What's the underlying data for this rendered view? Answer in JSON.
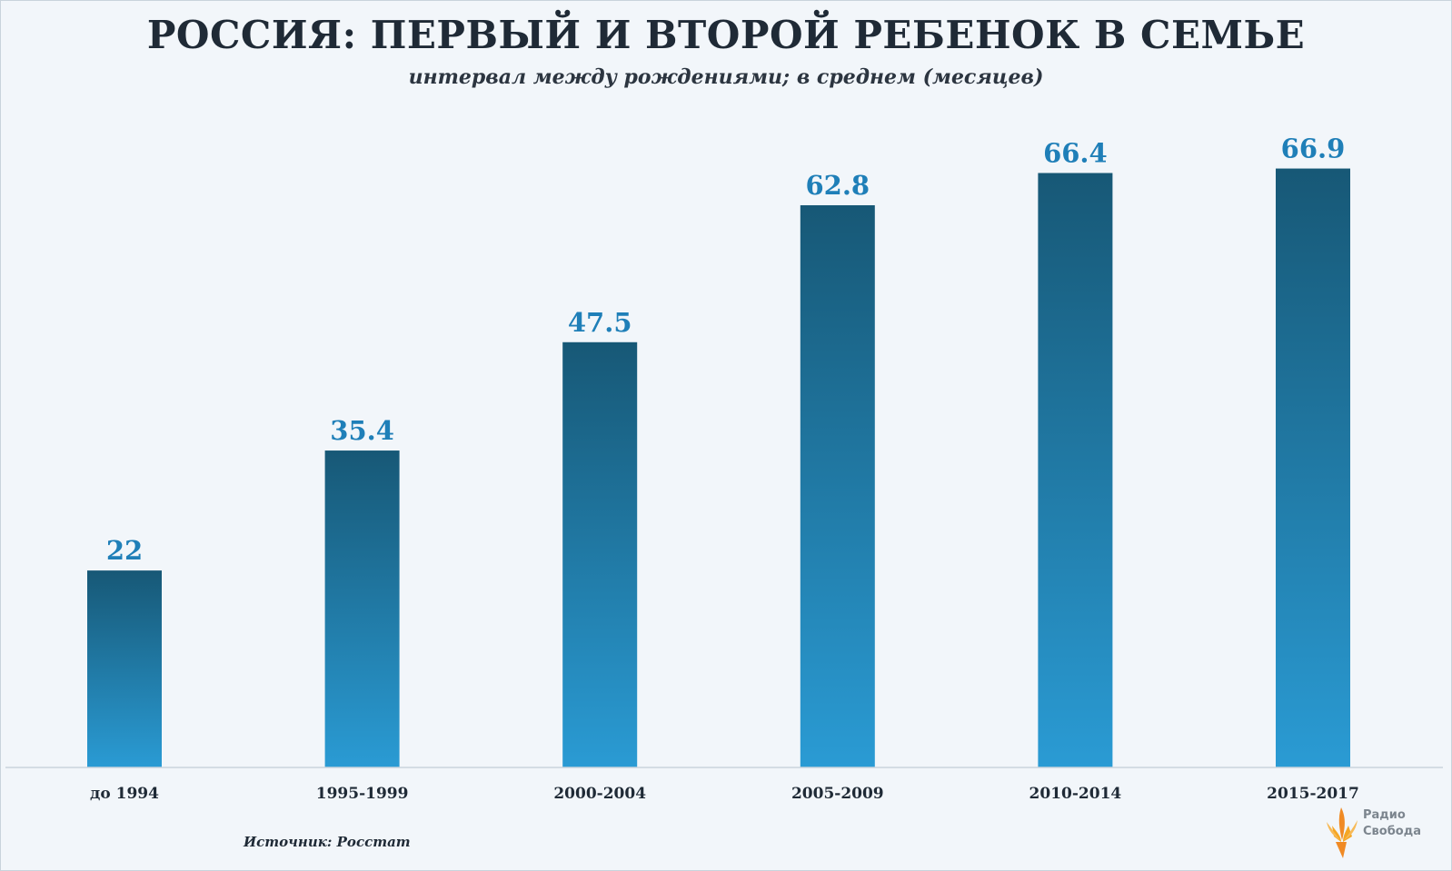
{
  "title": "РОССИЯ: ПЕРВЫЙ И ВТОРОЙ РЕБЕНОК В СЕМЬЕ",
  "subtitle": "интервал между рождениями; в среднем (месяцев)",
  "source": "Источник: Росстат",
  "logo": {
    "line1": "Радио",
    "line2": "Свобода",
    "icon": "torch-icon"
  },
  "colors": {
    "bar_top": "#175876",
    "bar_bottom": "#2a9bd4",
    "label": "#1f7fb8",
    "axis": "#c9d3dc"
  },
  "chart_data": {
    "type": "bar",
    "title": "РОССИЯ: ПЕРВЫЙ И ВТОРОЙ РЕБЕНОК В СЕМЬЕ",
    "subtitle": "интервал между рождениями; в среднем (месяцев)",
    "categories": [
      "до 1994",
      "1995-1999",
      "2000-2004",
      "2005-2009",
      "2010-2014",
      "2015-2017"
    ],
    "values": [
      22,
      35.4,
      47.5,
      62.8,
      66.4,
      66.9
    ],
    "value_labels": [
      "22",
      "35.4",
      "47.5",
      "62.8",
      "66.4",
      "66.9"
    ],
    "xlabel": "",
    "ylabel": "",
    "ylim": [
      0,
      70
    ]
  }
}
